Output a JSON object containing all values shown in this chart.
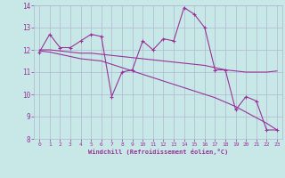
{
  "xlabel": "Windchill (Refroidissement éolien,°C)",
  "x_data": [
    0,
    1,
    2,
    3,
    4,
    5,
    6,
    7,
    8,
    9,
    10,
    11,
    12,
    13,
    14,
    15,
    16,
    17,
    18,
    19,
    20,
    21,
    22,
    23
  ],
  "y_actual": [
    11.9,
    12.7,
    12.1,
    12.1,
    12.4,
    12.7,
    12.6,
    9.9,
    11.0,
    11.1,
    12.4,
    12.0,
    12.5,
    12.4,
    13.9,
    13.6,
    13.0,
    11.1,
    11.1,
    9.3,
    9.9,
    9.7,
    8.4,
    8.4
  ],
  "y_trend_flat": [
    12.0,
    12.0,
    11.95,
    11.9,
    11.85,
    11.85,
    11.8,
    11.75,
    11.7,
    11.65,
    11.6,
    11.55,
    11.5,
    11.45,
    11.4,
    11.35,
    11.3,
    11.2,
    11.1,
    11.05,
    11.0,
    11.0,
    11.0,
    11.05
  ],
  "y_trend_steep": [
    11.95,
    11.9,
    11.8,
    11.7,
    11.6,
    11.55,
    11.5,
    11.35,
    11.2,
    11.05,
    10.9,
    10.75,
    10.6,
    10.45,
    10.3,
    10.15,
    10.0,
    9.85,
    9.65,
    9.45,
    9.2,
    8.95,
    8.7,
    8.4
  ],
  "line_color": "#993399",
  "bg_color": "#c8e8e8",
  "grid_color": "#b0b8d0",
  "ylim": [
    8,
    14
  ],
  "yticks": [
    8,
    9,
    10,
    11,
    12,
    13,
    14
  ],
  "xlim": [
    -0.5,
    23.5
  ],
  "xticks": [
    0,
    1,
    2,
    3,
    4,
    5,
    6,
    7,
    8,
    9,
    10,
    11,
    12,
    13,
    14,
    15,
    16,
    17,
    18,
    19,
    20,
    21,
    22,
    23
  ]
}
